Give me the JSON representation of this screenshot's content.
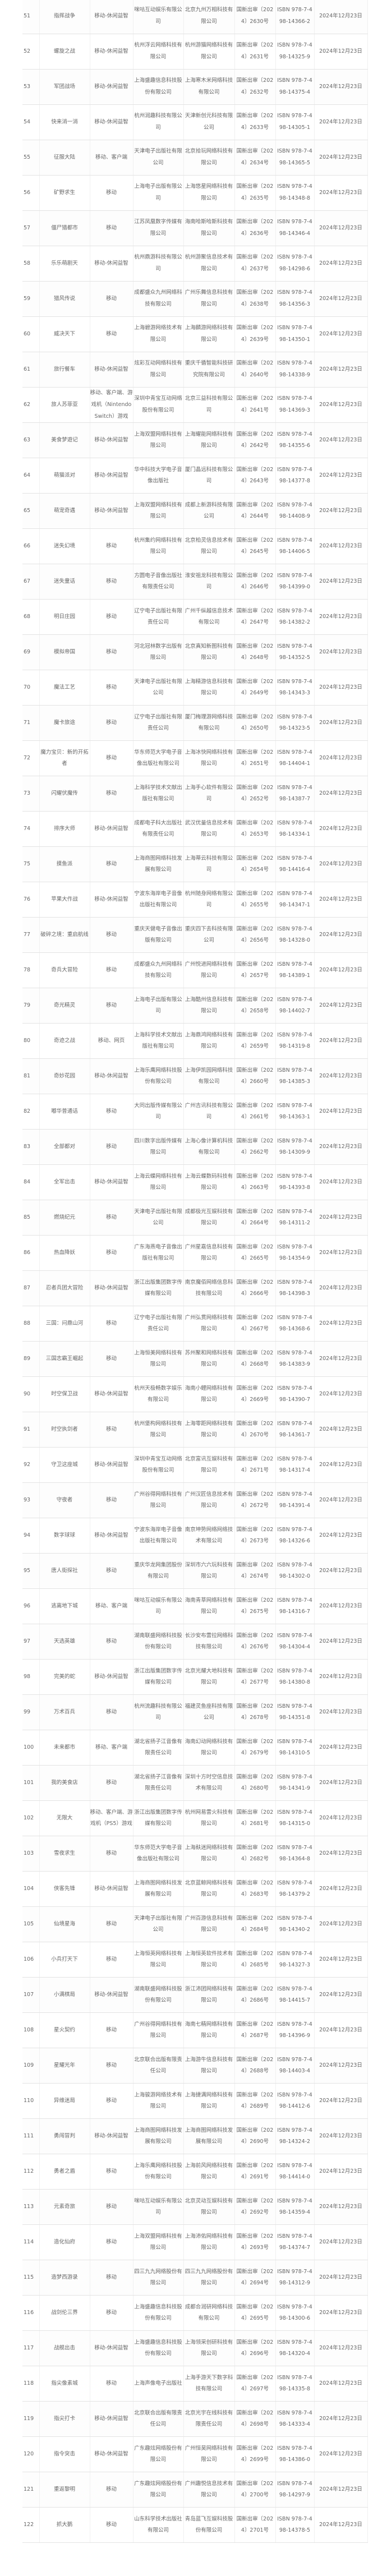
{
  "table": {
    "rows": [
      [
        "51",
        "指挥战争",
        "移动-休闲益智",
        "咪咕互动娱乐有限公司",
        "北京九州万相科技有限公司",
        "国新出审〔2024〕2630号",
        "ISBN 978-7-498-14366-2",
        "2024年12月23日"
      ],
      [
        "52",
        "螺旋之战",
        "移动-休闲益智",
        "杭州浮云网络科技有限公司",
        "杭州游猫网络科技有限公司",
        "国新出审〔2024〕2631号",
        "ISBN 978-7-498-14325-9",
        "2024年12月23日"
      ],
      [
        "53",
        "军团战场",
        "移动-休闲益智",
        "上海盛趣信息科技股份有限公司",
        "上海寒木米网络科技有限公司",
        "国新出审〔2024〕2632号",
        "ISBN 978-7-498-14375-4",
        "2024年12月23日"
      ],
      [
        "54",
        "快来消一消",
        "移动-休闲益智",
        "杭州润趣科技有限公司",
        "天津新创元科技有限公司",
        "国新出审〔2024〕2633号",
        "ISBN 978-7-498-14305-1",
        "2024年12月23日"
      ],
      [
        "55",
        "征服大陆",
        "移动、客户端",
        "天津电子出版社有限公司",
        "北京拾玩网络科技有限公司",
        "国新出审〔2024〕2634号",
        "ISBN 978-7-498-14365-5",
        "2024年12月23日"
      ],
      [
        "56",
        "矿野求生",
        "移动",
        "上海电子出版有限公司",
        "上海悠星网络科技有限公司",
        "国新出审〔2024〕2635号",
        "ISBN 978-7-498-14348-8",
        "2024年12月23日"
      ],
      [
        "57",
        "僵尸猎都市",
        "移动",
        "江苏凤凰数字传媒有限公司",
        "海南哈斯哈斯科技有限公司",
        "国新出审〔2024〕2636号",
        "ISBN 978-7-498-14346-4",
        "2024年12月23日"
      ],
      [
        "58",
        "乐乐萌剧天",
        "移动-休闲益智",
        "杭州鼎游科技有限公司",
        "杭州游聚信息技术有限公司",
        "国新出审〔2024〕2637号",
        "ISBN 978-7-498-14298-6",
        "2024年12月23日"
      ],
      [
        "59",
        "猎风传说",
        "移动",
        "成都盛众九州网络科技有限公司",
        "广州乐舞信息科技有限公司",
        "国新出审〔2024〕2638号",
        "ISBN 978-7-498-14356-3",
        "2024年12月23日"
      ],
      [
        "60",
        "威决天下",
        "移动",
        "上海碧游网络技术有限公司",
        "上海麟游网络科技有限公司",
        "国新出审〔2024〕2639号",
        "ISBN 978-7-498-14350-1",
        "2024年12月23日"
      ],
      [
        "61",
        "旅行餐车",
        "移动-休闲益智",
        "炫彩互动网络科技有限公司",
        "重庆千循智能科技研究院有限公司",
        "国新出审〔2024〕2640号",
        "ISBN 978-7-498-14338-9",
        "2024年12月23日"
      ],
      [
        "62",
        "旅人苏菲亚",
        "移动、客户端、游戏机（Nintendo Switch）游戏",
        "深圳中青宝互动网络股份有限公司",
        "北京三益科技有限公司",
        "国新出审〔2024〕2641号",
        "ISBN 978-7-498-14369-3",
        "2024年12月23日"
      ],
      [
        "63",
        "美食梦遊记",
        "移动-休闲益智",
        "上海双盟网络科技有限公司",
        "上海耀能网络科技有限公司",
        "国新出审〔2024〕2642号",
        "ISBN 978-7-498-14355-6",
        "2024年12月23日"
      ],
      [
        "64",
        "萌猫派对",
        "移动-休闲益智",
        "华中科技大学电子音像出版社",
        "厦门晶远科技有限公司",
        "国新出审〔2024〕2643号",
        "ISBN 978-7-498-14377-8",
        "2024年12月23日"
      ],
      [
        "65",
        "萌宠奇遇",
        "移动-休闲益智",
        "上海双盟网络科技有限公司",
        "成都上新游科技有限公司",
        "国新出审〔2024〕2644号",
        "ISBN 978-7-498-14408-9",
        "2024年12月23日"
      ],
      [
        "66",
        "迷失幻境",
        "移动",
        "杭州集约网络科技有限公司",
        "北京柏灵信息技术有限公司",
        "国新出审〔2024〕2645号",
        "ISBN 978-7-498-14406-5",
        "2024年12月23日"
      ],
      [
        "67",
        "迷失童话",
        "移动",
        "方圆电子音像出版社有限责任公司",
        "淮安祖龙科技有限公司",
        "国新出审〔2024〕2646号",
        "ISBN 978-7-498-14399-0",
        "2024年12月23日"
      ],
      [
        "68",
        "明日庄园",
        "移动",
        "辽宁电子出版社有限责任公司",
        "广州千纵越信息技术有限公司",
        "国新出审〔2024〕2647号",
        "ISBN 978-7-498-14382-2",
        "2024年12月23日"
      ],
      [
        "69",
        "模拟帝国",
        "移动",
        "河北冠林数字出版有限公司",
        "北京真知新图科技有限公司",
        "国新出审〔2024〕2648号",
        "ISBN 978-7-498-14352-5",
        "2024年12月23日"
      ],
      [
        "70",
        "魔法工艺",
        "移动",
        "天津电子出版社有限公司",
        "上海精游信息科技有限公司",
        "国新出审〔2024〕2649号",
        "ISBN 978-7-498-14343-3",
        "2024年12月23日"
      ],
      [
        "71",
        "魔卡旅途",
        "移动",
        "辽宁电子出版社有限责任公司",
        "厦门梅理游网络科技有限公司",
        "国新出审〔2024〕2650号",
        "ISBN 978-7-498-14323-5",
        "2024年12月23日"
      ],
      [
        "72",
        "魔力宝贝：新的开拓者",
        "移动",
        "华东师范大学电子音像出版社有限公司",
        "上海冰快网络科技有限公司",
        "国新出审〔2024〕2651号",
        "ISBN 978-7-498-14404-1",
        "2024年12月23日"
      ],
      [
        "73",
        "闪耀伏魔传",
        "移动",
        "上海科学技术文献出版社有限公司",
        "上海手心软件有限公司",
        "国新出审〔2024〕2652号",
        "ISBN 978-7-498-14387-7",
        "2024年12月23日"
      ],
      [
        "74",
        "排序大师",
        "移动-休闲益智",
        "成都电子科大出版社有限责任公司",
        "武汉优量信息技术有限公司",
        "国新出审〔2024〕2653号",
        "ISBN 978-7-498-14334-1",
        "2024年12月23日"
      ],
      [
        "75",
        "摸鱼派",
        "移动",
        "上海商图网络科技发展有限公司",
        "上海蒂云科技有限公司",
        "国新出审〔2024〕2654号",
        "ISBN 978-7-498-14416-4",
        "2024年12月23日"
      ],
      [
        "76",
        "苹果大作战",
        "移动-休闲益智",
        "宁波东海岸电子音像出版社有限公司",
        "杭州随身网络有限公司",
        "国新出审〔2024〕2655号",
        "ISBN 978-7-498-14347-1",
        "2024年12月23日"
      ],
      [
        "77",
        "破碎之境：重启航线",
        "移动",
        "重庆天健电子音像出版有限公司",
        "重庆四下去科技有限公司",
        "国新出审〔2024〕2656号",
        "ISBN 978-7-498-14328-0",
        "2024年12月23日"
      ],
      [
        "78",
        "奇兵大冒险",
        "移动",
        "成都盛众九州网络科技有限公司",
        "广州悦进网络科技有限公司",
        "国新出审〔2024〕2657号",
        "ISBN 978-7-498-14389-1",
        "2024年12月23日"
      ],
      [
        "79",
        "奇光精灵",
        "移动",
        "上海电子出版有限公司",
        "上海酷州信息科技有限公司",
        "国新出审〔2024〕2658号",
        "ISBN 978-7-498-14402-7",
        "2024年12月23日"
      ],
      [
        "80",
        "奇迹之战",
        "移动、网页",
        "上海科学技术文献出版社有限公司",
        "上海鼎鸿网络科技有限公司",
        "国新出审〔2024〕2659号",
        "ISBN 978-7-498-14319-8",
        "2024年12月23日"
      ],
      [
        "81",
        "奇妙花园",
        "移动-休闲益智",
        "上海乐鹰网络科技股份有限公司",
        "上海伊凯园网络科技有限公司",
        "国新出审〔2024〕2660号",
        "ISBN 978-7-498-14385-3",
        "2024年12月23日"
      ],
      [
        "82",
        "嘟华普通话",
        "移动",
        "大同出版传媒有限公司",
        "广州吉讯科技有限公司",
        "国新出审〔2024〕2661号",
        "ISBN 978-7-498-14363-1",
        "2024年12月23日"
      ],
      [
        "83",
        "全部都对",
        "移动",
        "四川数字出版传媒有限公司",
        "上海心像计算机科技有限公司",
        "国新出审〔2024〕2662号",
        "ISBN 978-7-498-14309-9",
        "2024年12月23日"
      ],
      [
        "84",
        "全军出击",
        "移动-休闲益智",
        "上海云蝶网络科技有限公司",
        "上海云蝶数码科技有限公司",
        "国新出审〔2024〕2663号",
        "ISBN 978-7-498-14393-8",
        "2024年12月23日"
      ],
      [
        "85",
        "燃烧纪元",
        "移动",
        "天津电子出版社有限公司",
        "成都极光互娱科技有限公司",
        "国新出审〔2024〕2664号",
        "ISBN 978-7-498-14311-2",
        "2024年12月23日"
      ],
      [
        "86",
        "热血降妖",
        "移动",
        "广东海燕电子音像出版社有限公司",
        "广州星嘉信息科技有限公司",
        "国新出审〔2024〕2665号",
        "ISBN 978-7-498-14354-9",
        "2024年12月23日"
      ],
      [
        "87",
        "忍者兵团大冒险",
        "移动-休闲益智",
        "浙江出版集团数字传媒有限公司",
        "南京魔佰网络信息科技有限公司",
        "国新出审〔2024〕2666号",
        "ISBN 978-7-498-14398-3",
        "2024年12月23日"
      ],
      [
        "88",
        "三国：问鼎山河",
        "移动",
        "辽宁电子出版社有限责任公司",
        "广州弘贯网络科技有限公司",
        "国新出审〔2024〕2667号",
        "ISBN 978-7-498-14368-6",
        "2024年12月23日"
      ],
      [
        "89",
        "三国志霸王崛起",
        "移动",
        "上海恒美网络科技有限公司",
        "苏州聚和网络科技有限公司",
        "国新出审〔2024〕2668号",
        "ISBN 978-7-498-14383-9",
        "2024年12月23日"
      ],
      [
        "90",
        "时空保卫战",
        "移动-休闲益智",
        "杭州天极畅数字娱乐有限公司",
        "海南小鲤网络科技有限公司",
        "国新出审〔2024〕2669号",
        "ISBN 978-7-498-14390-7",
        "2024年12月23日"
      ],
      [
        "91",
        "时空执剑者",
        "移动",
        "杭州堡构网络科技有限公司",
        "上海零距网络科技有限公司",
        "国新出审〔2024〕2670号",
        "ISBN 978-7-498-14361-7",
        "2024年12月23日"
      ],
      [
        "92",
        "守卫这座城",
        "移动-休闲益智",
        "深圳中青宝互动网络股份有限公司",
        "北京富讯互娱科技有限公司",
        "国新出审〔2024〕2671号",
        "ISBN 978-7-498-14317-4",
        "2024年12月23日"
      ],
      [
        "93",
        "守夜者",
        "移动",
        "广州谷得网络科技有限公司",
        "广州汉匠信息技术有限公司",
        "国新出审〔2024〕2672号",
        "ISBN 978-7-498-14391-4",
        "2024年12月23日"
      ],
      [
        "94",
        "数字球球",
        "移动-休闲益智",
        "宁波东海岸电子音像出版社有限公司",
        "南京坤势网络网络技术有限公司",
        "国新出审〔2024〕2673号",
        "ISBN 978-7-498-14326-6",
        "2024年12月23日"
      ],
      [
        "95",
        "唐人街探社",
        "移动",
        "重庆华龙网集团股份有限公司",
        "深圳市六六玩科技有限公司",
        "国新出审〔2024〕2674号",
        "ISBN 978-7-498-14302-0",
        "2024年12月23日"
      ],
      [
        "96",
        "逃离地下城",
        "移动、客户端",
        "咪咕互动娱乐有限公司",
        "海南青草网络科技有限公司",
        "国新出审〔2024〕2675号",
        "ISBN 978-7-498-14316-7",
        "2024年12月23日"
      ],
      [
        "97",
        "天选英雄",
        "移动",
        "湖南联盛网络科技股份有限公司",
        "长沙安布雷拉网络科技有限公司",
        "国新出审〔2024〕2676号",
        "ISBN 978-7-498-14304-4",
        "2024年12月23日"
      ],
      [
        "98",
        "完美的蛇",
        "移动-休闲益智",
        "浙江出版集团数字传媒有限公司",
        "北京光耀大地科技有限公司",
        "国新出审〔2024〕2677号",
        "ISBN 978-7-498-14380-8",
        "2024年12月23日"
      ],
      [
        "99",
        "万术百兵",
        "移动",
        "杭州流趣科技有限公司",
        "福建灵鱼座科技有限公司",
        "国新出审〔2024〕2678号",
        "ISBN 978-7-498-14351-8",
        "2024年12月23日"
      ],
      [
        "100",
        "未来都市",
        "移动、客户端",
        "湖北省扬子江音像有限责任公司",
        "海南幻动网络科技有限公司",
        "国新出审〔2024〕2679号",
        "ISBN 978-7-498-14310-5",
        "2024年12月23日"
      ],
      [
        "101",
        "我的美食店",
        "移动",
        "湖北省扬子江音像有限责任公司",
        "深圳十方时空信息技术有限公司",
        "国新出审〔2024〕2680号",
        "ISBN 978-7-498-14341-9",
        "2024年12月23日"
      ],
      [
        "102",
        "无限大",
        "移动、客户端、游戏机（PS5）游戏",
        "浙江出版集团数字传媒有限公司",
        "杭州网易雷火科技有限公司",
        "国新出审〔2024〕2681号",
        "ISBN 978-7-498-14315-0",
        "2024年12月23日"
      ],
      [
        "103",
        "雪夜求生",
        "移动",
        "华东师范大学电子音像出版社有限公司",
        "上海麸迷网络科技有限公司",
        "国新出审〔2024〕2682号",
        "ISBN 978-7-498-14364-8",
        "2024年12月23日"
      ],
      [
        "104",
        "侠客先锋",
        "移动-休闲益智",
        "上海商图网络科技发展有限公司",
        "北京蓝鲸网络科技有限公司",
        "国新出审〔2024〕2683号",
        "ISBN 978-7-498-14379-2",
        "2024年12月23日"
      ],
      [
        "105",
        "仙境星海",
        "移动",
        "天津电子出版社有限公司",
        "广州百游信息科技有限公司",
        "国新出审〔2024〕2684号",
        "ISBN 978-7-498-14340-2",
        "2024年12月23日"
      ],
      [
        "106",
        "小兵打天下",
        "移动",
        "上海恒英网络科技有限公司",
        "上海恒英软件技术有限公司",
        "国新出审〔2024〕2685号",
        "ISBN 978-7-498-14327-3",
        "2024年12月23日"
      ],
      [
        "107",
        "小满棋局",
        "移动-休闲益智",
        "湖南联盛网络科技股份有限公司",
        "浙江沛团网络科技有限公司",
        "国新出审〔2024〕2686号",
        "ISBN 978-7-498-14415-7",
        "2024年12月23日"
      ],
      [
        "108",
        "星火契约",
        "移动",
        "广州谷得网络科技有限公司",
        "海南七精网络科技有限公司",
        "国新出审〔2024〕2687号",
        "ISBN 978-7-498-14396-9",
        "2024年12月23日"
      ],
      [
        "109",
        "星耀光年",
        "移动",
        "北京联合出版有限责任公司",
        "上海游牛信息科技有限公司",
        "国新出审〔2024〕2688号",
        "ISBN 978-7-498-14403-4",
        "2024年12月23日"
      ],
      [
        "110",
        "异维迷局",
        "移动",
        "上海骏游网络技术有限公司",
        "上海捷满网络科技有限公司",
        "国新出审〔2024〕2689号",
        "ISBN 978-7-498-14412-6",
        "2024年12月23日"
      ],
      [
        "111",
        "勇闯冒判",
        "移动-休闲益智",
        "上海商图网络科技发展有限公司",
        "上海商图网络科技发展有限公司",
        "国新出审〔2024〕2690号",
        "ISBN 978-7-498-14324-2",
        "2024年12月23日"
      ],
      [
        "112",
        "勇者之盾",
        "移动",
        "上海乐鹰网络科技股份有限公司",
        "上海前风网络科技有限公司",
        "国新出审〔2024〕2691号",
        "ISBN 978-7-498-14414-0",
        "2024年12月23日"
      ],
      [
        "113",
        "元素奇旅",
        "移动",
        "咪咕互动娱乐有限公司",
        "北京灵动互娱科技有限公司",
        "国新出审〔2024〕2692号",
        "ISBN 978-7-498-14359-4",
        "2024年12月23日"
      ],
      [
        "114",
        "造化仙府",
        "移动",
        "上海双盟网络科技有限公司",
        "上海沛佑网络科技有限公司",
        "国新出审〔2024〕2693号",
        "ISBN 978-7-498-14374-7",
        "2024年12月23日"
      ],
      [
        "115",
        "造梦西游录",
        "移动",
        "四三九九网络股份有限公司",
        "四三九九网络股份有限公司",
        "国新出审〔2024〕2694号",
        "ISBN 978-7-498-14312-9",
        "2024年12月23日"
      ],
      [
        "116",
        "战剑伦三界",
        "移动",
        "上海盛趣信息科技股份有限公司",
        "成都合润研网络科技有限公司",
        "国新出审〔2024〕2695号",
        "ISBN 978-7-498-14300-6",
        "2024年12月23日"
      ],
      [
        "117",
        "战舰出击",
        "移动-休闲益智",
        "上海盛趣信息科技股份有限公司",
        "上海领采创研科技有限公司",
        "国新出审〔2024〕2696号",
        "ISBN 978-7-498-14320-4",
        "2024年12月23日"
      ],
      [
        "118",
        "指尖像素城",
        "移动",
        "上海声像电子出版社",
        "上海手游天下数字科技有限公司",
        "国新出审〔2024〕2697号",
        "ISBN 978-7-498-14335-8",
        "2024年12月23日"
      ],
      [
        "119",
        "指尖打卡",
        "移动-休闲益智",
        "北京联合出版有限责任公司",
        "北京光宇在线科技有限责任公司",
        "国新出审〔2024〕2698号",
        "ISBN 978-7-498-14333-4",
        "2024年12月23日"
      ],
      [
        "120",
        "指令突击",
        "移动-休闲益智",
        "广东趣炫网络股份有限公司",
        "广州恒昊网络科技有限公司",
        "国新出审〔2024〕2699号",
        "ISBN 978-7-498-14386-0",
        "2024年12月23日"
      ],
      [
        "121",
        "重返黎明",
        "移动",
        "广东趣炫网络股份有限公司",
        "广州趣悦信息技术有限公司",
        "国新出审〔2024〕2700号",
        "ISBN 978-7-498-14297-9",
        "2024年12月23日"
      ],
      [
        "122",
        "抓大鹅",
        "移动",
        "山东科学技术出版社有限公司",
        "青岛蓝飞互娱科技股份有限公司",
        "国新出审〔2024〕2701号",
        "ISBN 978-7-498-14378-5",
        "2024年12月23日"
      ]
    ]
  }
}
